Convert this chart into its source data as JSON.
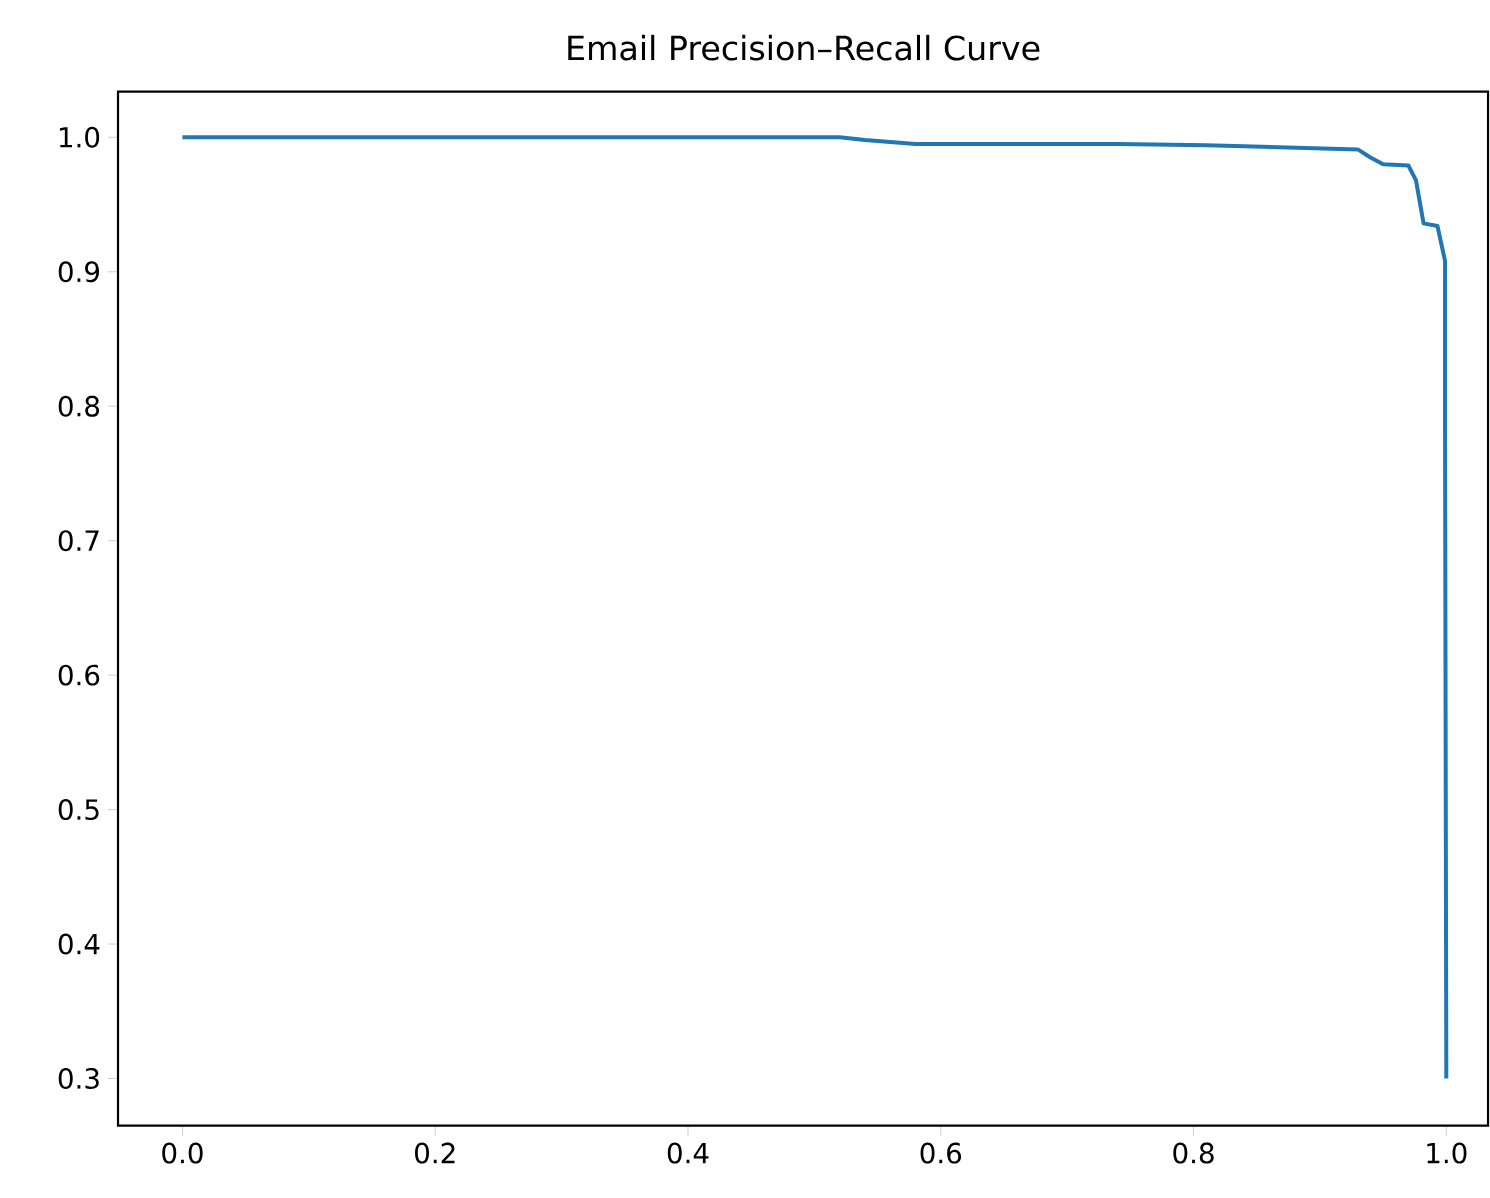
{
  "chart_data": {
    "type": "line",
    "title": "Email Precision–Recall Curve",
    "color": "#1f77b4",
    "x": [
      0.0,
      0.52,
      0.54,
      0.58,
      0.65,
      0.74,
      0.81,
      0.85,
      0.93,
      0.94,
      0.95,
      0.97,
      0.976,
      0.982,
      0.993,
      0.999,
      0.999,
      1.0
    ],
    "values": [
      1.0,
      1.0,
      0.998,
      0.995,
      0.995,
      0.995,
      0.994,
      0.993,
      0.991,
      0.985,
      0.98,
      0.979,
      0.968,
      0.936,
      0.934,
      0.908,
      0.78,
      0.3
    ],
    "xlim": [
      -0.051,
      1.033
    ],
    "ylim": [
      0.265,
      1.034
    ],
    "xticks": [
      {
        "value": 0,
        "label": "0.0"
      },
      {
        "value": 0.2,
        "label": "0.2"
      },
      {
        "value": 0.4,
        "label": "0.4"
      },
      {
        "value": 0.6,
        "label": "0.6"
      },
      {
        "value": 0.8,
        "label": "0.8"
      },
      {
        "value": 1.0,
        "label": "1.0"
      }
    ],
    "yticks": [
      {
        "value": 0.3,
        "label": "0.3"
      },
      {
        "value": 0.4,
        "label": "0.4"
      },
      {
        "value": 0.5,
        "label": "0.5"
      },
      {
        "value": 0.6,
        "label": "0.6"
      },
      {
        "value": 0.7,
        "label": "0.7"
      },
      {
        "value": 0.8,
        "label": "0.8"
      },
      {
        "value": 0.9,
        "label": "0.9"
      },
      {
        "value": 1.0,
        "label": "1.0"
      }
    ]
  }
}
